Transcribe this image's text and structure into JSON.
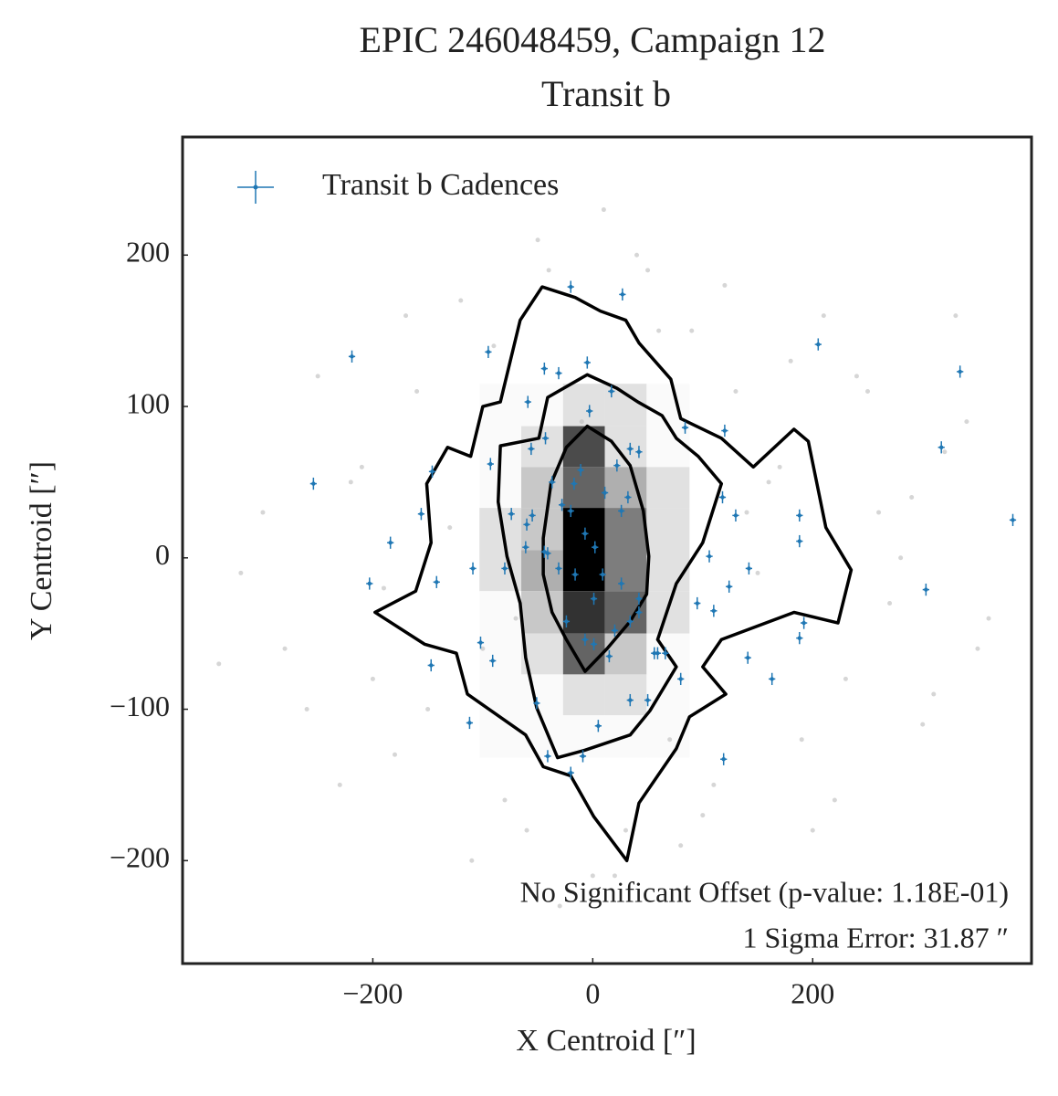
{
  "chart_data": {
    "type": "scatter",
    "title": [
      "EPIC 246048459, Campaign 12",
      "Transit b"
    ],
    "xlabel": "X Centroid [″]",
    "ylabel": "Y Centroid [″]",
    "xlim": [
      -373,
      399
    ],
    "ylim": [
      -268,
      278
    ],
    "xticks": [
      {
        "value": -200,
        "label": "−200"
      },
      0,
      200
    ],
    "yticks": [
      {
        "value": -200,
        "label": "−200"
      },
      {
        "value": -100,
        "label": "−100"
      },
      0,
      100,
      200
    ],
    "legend": "upper left",
    "annotations": [
      "No Significant Offset (p-value: 1.18E-01)",
      "1 Sigma Error: 31.87 ″"
    ],
    "hist2d": {
      "xbins": [
        -103,
        -65,
        -27,
        11,
        49,
        88
      ],
      "ybins": [
        115,
        87,
        60,
        33,
        5,
        -22,
        -50,
        -77,
        -104,
        -132
      ],
      "counts": [
        [
          0,
          0,
          1,
          1,
          0
        ],
        [
          0,
          1,
          7,
          1,
          0
        ],
        [
          0,
          2,
          6,
          3,
          1
        ],
        [
          1,
          2,
          10,
          5,
          1
        ],
        [
          1,
          3,
          10,
          5,
          1
        ],
        [
          0,
          2,
          8,
          6,
          1
        ],
        [
          0,
          1,
          6,
          2,
          0
        ],
        [
          0,
          0,
          1,
          1,
          0
        ],
        [
          0,
          0,
          0,
          0,
          0
        ]
      ]
    },
    "contours": [
      {
        "x": [
          -5,
          -24,
          -38,
          -45,
          -45,
          -37,
          -24,
          -7,
          13,
          34,
          49,
          51,
          46,
          34,
          17
        ],
        "y": [
          87,
          73,
          49,
          13,
          -11,
          -36,
          -54,
          -75,
          -60,
          -42,
          -24,
          1,
          31,
          61,
          77
        ]
      },
      {
        "x": [
          -5,
          -41,
          -49,
          -84,
          -86,
          -78,
          -66,
          -61,
          -51,
          -32,
          -7,
          34,
          52,
          76,
          59,
          76,
          100,
          117,
          96,
          76,
          63,
          41,
          22
        ],
        "y": [
          121,
          106,
          79,
          74,
          37,
          1,
          -30,
          -66,
          -99,
          -132,
          -127,
          -117,
          -101,
          -72,
          -54,
          -17,
          10,
          49,
          67,
          79,
          94,
          103,
          112
        ]
      },
      {
        "x": [
          -46,
          -66,
          -84,
          -100,
          -111,
          -132,
          -151,
          -147,
          -161,
          -198,
          -153,
          -124,
          -114,
          -61,
          -45,
          -20,
          1,
          31,
          42,
          76,
          88,
          121,
          100,
          117,
          183,
          223,
          235,
          212,
          196,
          183,
          146,
          117,
          80,
          71,
          42,
          30,
          7,
          -16
        ],
        "y": [
          179,
          157,
          103,
          100,
          67,
          73,
          49,
          10,
          -22,
          -36,
          -57,
          -63,
          -90,
          -117,
          -138,
          -144,
          -171,
          -200,
          -162,
          -126,
          -105,
          -90,
          -72,
          -54,
          -36,
          -43,
          -8,
          20,
          77,
          85,
          60,
          79,
          92,
          118,
          142,
          157,
          163,
          172
        ]
      }
    ],
    "series": [
      {
        "color": "#bbbbbb",
        "x": [
          -300,
          -280,
          -250,
          -230,
          -210,
          -190,
          -170,
          -150,
          -130,
          -110,
          -90,
          -70,
          -50,
          -30,
          -10,
          10,
          30,
          50,
          70,
          90,
          110,
          130,
          150,
          170,
          190,
          210,
          230,
          250,
          270,
          290,
          310,
          330,
          350,
          -320,
          -260,
          -200,
          -160,
          -120,
          -80,
          -40,
          0,
          40,
          80,
          120,
          160,
          200,
          240,
          280,
          320,
          360,
          -340,
          -220,
          -180,
          -100,
          -60,
          20,
          60,
          100,
          140,
          180,
          220,
          260,
          300,
          340
        ],
        "y": [
          30,
          -60,
          120,
          -150,
          60,
          -20,
          160,
          -100,
          20,
          -200,
          140,
          -40,
          210,
          -230,
          90,
          230,
          -180,
          190,
          -120,
          150,
          -150,
          110,
          -10,
          60,
          -120,
          160,
          -80,
          110,
          -30,
          40,
          -90,
          160,
          -60,
          -10,
          -100,
          -80,
          110,
          170,
          -160,
          190,
          -210,
          200,
          -190,
          180,
          50,
          -180,
          120,
          0,
          70,
          -40,
          -70,
          50,
          -130,
          -60,
          -180,
          -210,
          150,
          -170,
          30,
          130,
          -160,
          30,
          -110,
          90
        ]
      },
      {
        "name": "Transit b Cadences",
        "color": "#1f77b4",
        "xerr": 3,
        "yerr": 4,
        "x": [
          -219,
          -254,
          -20,
          27,
          -95,
          205,
          334,
          317,
          382,
          -59,
          -44,
          -31,
          -5,
          17,
          84,
          120,
          -3,
          -43,
          -56,
          -93,
          -146,
          -156,
          -184,
          -203,
          -142,
          -109,
          -80,
          -102,
          -91,
          -147,
          -112,
          -41,
          -20,
          -9,
          5,
          34,
          50,
          80,
          59,
          66,
          119,
          163,
          141,
          142,
          124,
          106,
          95,
          110,
          118,
          130,
          188,
          188,
          192,
          188,
          303,
          -51,
          -28,
          -20,
          -7,
          2,
          -16,
          1,
          9,
          26,
          32,
          42,
          34,
          22,
          11,
          -11,
          -17,
          -37,
          -55,
          -60,
          -44,
          -41,
          -31,
          -24,
          -7,
          1,
          15,
          20,
          34,
          42,
          26,
          42,
          56,
          -61,
          -74
        ],
        "y": [
          133,
          49,
          179,
          174,
          136,
          141,
          123,
          73,
          25,
          103,
          125,
          122,
          129,
          110,
          86,
          84,
          97,
          79,
          72,
          62,
          57,
          29,
          10,
          -17,
          -16,
          -7,
          -7,
          -56,
          -68,
          -71,
          -109,
          -131,
          -142,
          -131,
          -111,
          -94,
          -94,
          -80,
          -63,
          -63,
          -133,
          -80,
          -66,
          -7,
          -19,
          1,
          -30,
          -35,
          40,
          28,
          28,
          11,
          -43,
          -53,
          -21,
          -96,
          35,
          31,
          16,
          7,
          -11,
          -27,
          -11,
          31,
          40,
          70,
          72,
          61,
          43,
          58,
          49,
          50,
          28,
          22,
          4,
          3,
          -7,
          -42,
          -54,
          -57,
          -65,
          -48,
          -42,
          -36,
          -17,
          -27,
          -63,
          7,
          29
        ]
      }
    ]
  }
}
